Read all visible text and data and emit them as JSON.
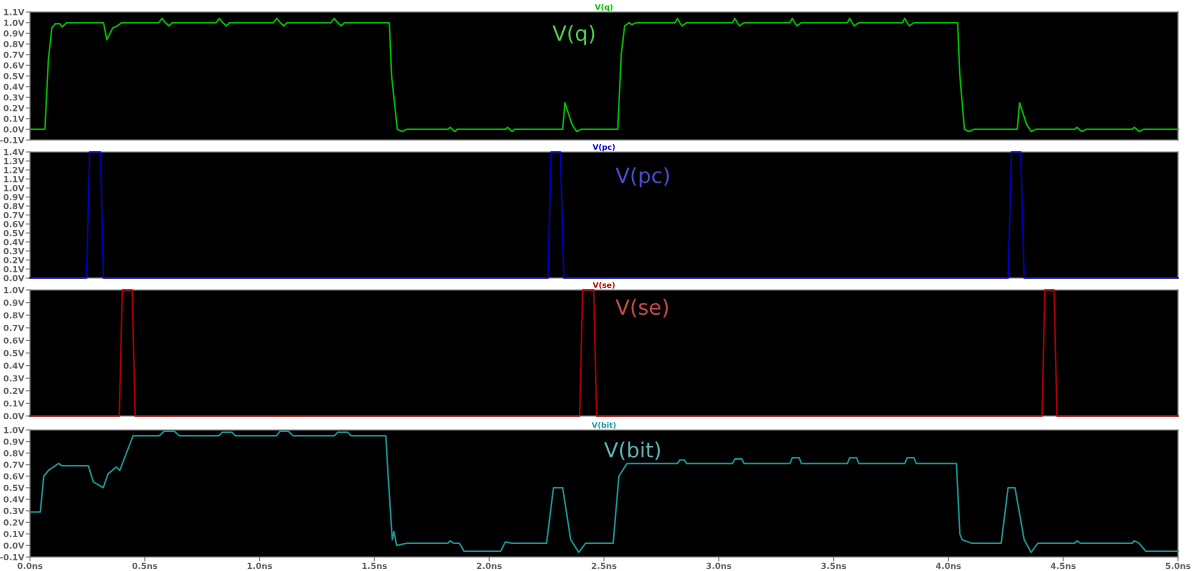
{
  "chart_data": [
    {
      "type": "line",
      "title": "V(q)",
      "annotations": [
        "V(q)"
      ],
      "tick_labels": "y",
      "grid": false,
      "xlim": [
        0,
        5
      ],
      "ylim": [
        -0.1,
        1.1
      ],
      "yticks": [
        {
          "value": -0.1,
          "label": "-0.1V"
        },
        {
          "value": 0.0,
          "label": "0.0V"
        },
        {
          "value": 0.1,
          "label": "0.1V"
        },
        {
          "value": 0.2,
          "label": "0.2V"
        },
        {
          "value": 0.3,
          "label": "0.3V"
        },
        {
          "value": 0.4,
          "label": "0.4V"
        },
        {
          "value": 0.5,
          "label": "0.5V"
        },
        {
          "value": 0.6,
          "label": "0.6V"
        },
        {
          "value": 0.7,
          "label": "0.7V"
        },
        {
          "value": 0.8,
          "label": "0.8V"
        },
        {
          "value": 0.9,
          "label": "0.9V"
        },
        {
          "value": 1.0,
          "label": "1.0V"
        },
        {
          "value": 1.1,
          "label": "1.1V"
        }
      ],
      "series": [
        {
          "color": "#00c000",
          "x": [
            0,
            0.065,
            0.08,
            0.095,
            0.11,
            0.13,
            0.14,
            0.16,
            0.32,
            0.335,
            0.36,
            0.38,
            0.4,
            0.56,
            0.575,
            0.59,
            0.605,
            0.62,
            0.81,
            0.825,
            0.84,
            0.855,
            0.87,
            1.06,
            1.075,
            1.09,
            1.105,
            1.12,
            1.31,
            1.325,
            1.34,
            1.355,
            1.37,
            1.565,
            1.575,
            1.6,
            1.62,
            1.64,
            1.82,
            1.83,
            1.84,
            1.85,
            1.86,
            2.07,
            2.08,
            2.09,
            2.1,
            2.11,
            2.32,
            2.33,
            2.36,
            2.38,
            2.4,
            2.56,
            2.575,
            2.59,
            2.61,
            2.62,
            2.64,
            2.81,
            2.82,
            2.83,
            2.84,
            2.86,
            3.06,
            3.07,
            3.08,
            3.09,
            3.11,
            3.31,
            3.32,
            3.33,
            3.34,
            3.36,
            3.56,
            3.57,
            3.58,
            3.59,
            3.61,
            3.8,
            3.81,
            3.82,
            3.83,
            3.85,
            4.04,
            4.05,
            4.07,
            4.09,
            4.11,
            4.3,
            4.31,
            4.34,
            4.36,
            4.38,
            4.55,
            4.56,
            4.57,
            4.58,
            4.6,
            4.8,
            4.81,
            4.82,
            4.83,
            4.85,
            5.0
          ],
          "values": [
            0,
            0,
            0.65,
            0.95,
            0.99,
            0.99,
            0.96,
            1.0,
            1.0,
            0.84,
            0.95,
            0.97,
            1.0,
            1.0,
            1.04,
            1.0,
            0.97,
            1.0,
            1.0,
            1.04,
            1.0,
            0.97,
            1.0,
            1.0,
            1.04,
            1.0,
            0.97,
            1.0,
            1.0,
            1.04,
            1.0,
            0.97,
            1.0,
            1.0,
            0.5,
            0.0,
            -0.02,
            0.0,
            0.0,
            0.02,
            0.0,
            -0.02,
            0.0,
            0.0,
            0.02,
            0.0,
            -0.02,
            0.0,
            0.0,
            0.25,
            0.05,
            -0.02,
            0.0,
            0.0,
            0.7,
            0.97,
            1.0,
            0.98,
            1.0,
            1.0,
            1.04,
            1.0,
            0.97,
            1.0,
            1.0,
            1.04,
            1.0,
            0.97,
            1.0,
            1.0,
            1.04,
            1.0,
            0.97,
            1.0,
            1.0,
            1.04,
            1.0,
            0.97,
            1.0,
            1.0,
            1.04,
            1.0,
            0.97,
            1.0,
            1.0,
            0.5,
            0.0,
            -0.02,
            0.0,
            0.0,
            0.25,
            0.05,
            -0.02,
            0.0,
            0.0,
            0.02,
            0.0,
            -0.02,
            0.0,
            0.0,
            0.02,
            0.0,
            -0.02,
            0.0,
            0.0
          ]
        }
      ]
    },
    {
      "type": "line",
      "title": "V(pc)",
      "annotations": [
        "V(pc)"
      ],
      "tick_labels": "y",
      "grid": false,
      "xlim": [
        0,
        5
      ],
      "ylim": [
        0.0,
        1.4
      ],
      "yticks": [
        {
          "value": 0.0,
          "label": "0.0V"
        },
        {
          "value": 0.1,
          "label": "0.1V"
        },
        {
          "value": 0.2,
          "label": "0.2V"
        },
        {
          "value": 0.3,
          "label": "0.3V"
        },
        {
          "value": 0.4,
          "label": "0.4V"
        },
        {
          "value": 0.5,
          "label": "0.5V"
        },
        {
          "value": 0.6,
          "label": "0.6V"
        },
        {
          "value": 0.7,
          "label": "0.7V"
        },
        {
          "value": 0.8,
          "label": "0.8V"
        },
        {
          "value": 0.9,
          "label": "0.9V"
        },
        {
          "value": 1.0,
          "label": "1.0V"
        },
        {
          "value": 1.1,
          "label": "1.1V"
        },
        {
          "value": 1.2,
          "label": "1.2V"
        },
        {
          "value": 1.3,
          "label": "1.3V"
        },
        {
          "value": 1.4,
          "label": "1.4V"
        }
      ],
      "series": [
        {
          "color": "#0000c0",
          "x": [
            0,
            0.246,
            0.26,
            0.307,
            0.32,
            2.256,
            2.27,
            2.31,
            2.325,
            4.26,
            4.275,
            4.315,
            4.33,
            5.0
          ],
          "values": [
            0,
            0,
            1.4,
            1.4,
            0,
            0,
            1.4,
            1.4,
            0,
            0,
            1.4,
            1.4,
            0,
            0
          ]
        }
      ]
    },
    {
      "type": "line",
      "title": "V(se)",
      "annotations": [
        "V(se)"
      ],
      "tick_labels": "y",
      "grid": false,
      "xlim": [
        0,
        5
      ],
      "ylim": [
        0.0,
        1.0
      ],
      "yticks": [
        {
          "value": 0.0,
          "label": "0.0V"
        },
        {
          "value": 0.1,
          "label": "0.1V"
        },
        {
          "value": 0.2,
          "label": "0.2V"
        },
        {
          "value": 0.3,
          "label": "0.3V"
        },
        {
          "value": 0.4,
          "label": "0.4V"
        },
        {
          "value": 0.5,
          "label": "0.5V"
        },
        {
          "value": 0.6,
          "label": "0.6V"
        },
        {
          "value": 0.7,
          "label": "0.7V"
        },
        {
          "value": 0.8,
          "label": "0.8V"
        },
        {
          "value": 0.9,
          "label": "0.9V"
        },
        {
          "value": 1.0,
          "label": "1.0V"
        }
      ],
      "series": [
        {
          "color": "#b00000",
          "x": [
            0,
            0.389,
            0.402,
            0.445,
            0.458,
            2.394,
            2.407,
            2.455,
            2.468,
            4.408,
            4.42,
            4.46,
            4.473,
            5.0
          ],
          "values": [
            0,
            0,
            1.0,
            1.0,
            0,
            0,
            1.0,
            1.0,
            0,
            0,
            1.0,
            1.0,
            0,
            0
          ]
        }
      ]
    },
    {
      "type": "line",
      "title": "V(bit)",
      "annotations": [
        "V(bit)"
      ],
      "grid": false,
      "xlim": [
        0,
        5
      ],
      "xticks": [
        {
          "value": 0,
          "label": "0.0ns"
        },
        {
          "value": 0.5,
          "label": "0.5ns"
        },
        {
          "value": 1.0,
          "label": "1.0ns"
        },
        {
          "value": 1.5,
          "label": "1.5ns"
        },
        {
          "value": 2.0,
          "label": "2.0ns"
        },
        {
          "value": 2.5,
          "label": "2.5ns"
        },
        {
          "value": 3.0,
          "label": "3.0ns"
        },
        {
          "value": 3.5,
          "label": "3.5ns"
        },
        {
          "value": 4.0,
          "label": "4.0ns"
        },
        {
          "value": 4.5,
          "label": "4.5ns"
        },
        {
          "value": 5.0,
          "label": "5.0ns"
        }
      ],
      "ylim": [
        -0.1,
        1.0
      ],
      "yticks": [
        {
          "value": -0.1,
          "label": "-0.1V"
        },
        {
          "value": 0.0,
          "label": "0.0V"
        },
        {
          "value": 0.1,
          "label": "0.1V"
        },
        {
          "value": 0.2,
          "label": "0.2V"
        },
        {
          "value": 0.3,
          "label": "0.3V"
        },
        {
          "value": 0.4,
          "label": "0.4V"
        },
        {
          "value": 0.5,
          "label": "0.5V"
        },
        {
          "value": 0.6,
          "label": "0.6V"
        },
        {
          "value": 0.7,
          "label": "0.7V"
        },
        {
          "value": 0.8,
          "label": "0.8V"
        },
        {
          "value": 0.9,
          "label": "0.9V"
        },
        {
          "value": 1.0,
          "label": "1.0V"
        }
      ],
      "series": [
        {
          "color": "#1a9a9a",
          "x": [
            0,
            0.045,
            0.06,
            0.08,
            0.125,
            0.139,
            0.254,
            0.276,
            0.319,
            0.34,
            0.376,
            0.391,
            0.42,
            0.449,
            0.563,
            0.585,
            0.628,
            0.65,
            0.823,
            0.837,
            0.88,
            0.894,
            1.074,
            1.089,
            1.125,
            1.146,
            1.326,
            1.34,
            1.384,
            1.398,
            1.55,
            1.56,
            1.578,
            1.585,
            1.597,
            1.64,
            1.82,
            1.83,
            1.845,
            1.87,
            1.89,
            2.05,
            2.07,
            2.1,
            2.25,
            2.28,
            2.32,
            2.355,
            2.39,
            2.42,
            2.54,
            2.565,
            2.6,
            2.82,
            2.83,
            2.85,
            2.86,
            3.06,
            3.07,
            3.1,
            3.11,
            3.31,
            3.32,
            3.35,
            3.36,
            3.56,
            3.57,
            3.6,
            3.61,
            3.81,
            3.82,
            3.85,
            3.86,
            4.035,
            4.05,
            4.06,
            4.1,
            4.23,
            4.26,
            4.29,
            4.33,
            4.36,
            4.39,
            4.55,
            4.56,
            4.575,
            4.8,
            4.81,
            4.83,
            4.86,
            5.0
          ],
          "values": [
            0.29,
            0.29,
            0.6,
            0.65,
            0.71,
            0.69,
            0.69,
            0.55,
            0.5,
            0.62,
            0.68,
            0.65,
            0.8,
            0.95,
            0.95,
            0.99,
            0.99,
            0.95,
            0.95,
            0.98,
            0.98,
            0.95,
            0.95,
            0.99,
            0.99,
            0.95,
            0.95,
            0.98,
            0.98,
            0.95,
            0.95,
            0.6,
            0.05,
            0.12,
            0.0,
            0.02,
            0.02,
            0.04,
            0.02,
            0.02,
            -0.05,
            -0.05,
            0.03,
            0.02,
            0.02,
            0.5,
            0.5,
            0.05,
            -0.06,
            0.02,
            0.02,
            0.6,
            0.71,
            0.71,
            0.74,
            0.74,
            0.71,
            0.71,
            0.75,
            0.75,
            0.71,
            0.71,
            0.76,
            0.76,
            0.71,
            0.71,
            0.76,
            0.76,
            0.71,
            0.71,
            0.76,
            0.76,
            0.71,
            0.71,
            0.1,
            0.05,
            0.02,
            0.02,
            0.5,
            0.5,
            0.05,
            -0.06,
            0.02,
            0.02,
            0.04,
            0.02,
            0.02,
            0.04,
            0.02,
            -0.05,
            -0.05
          ]
        }
      ]
    }
  ]
}
